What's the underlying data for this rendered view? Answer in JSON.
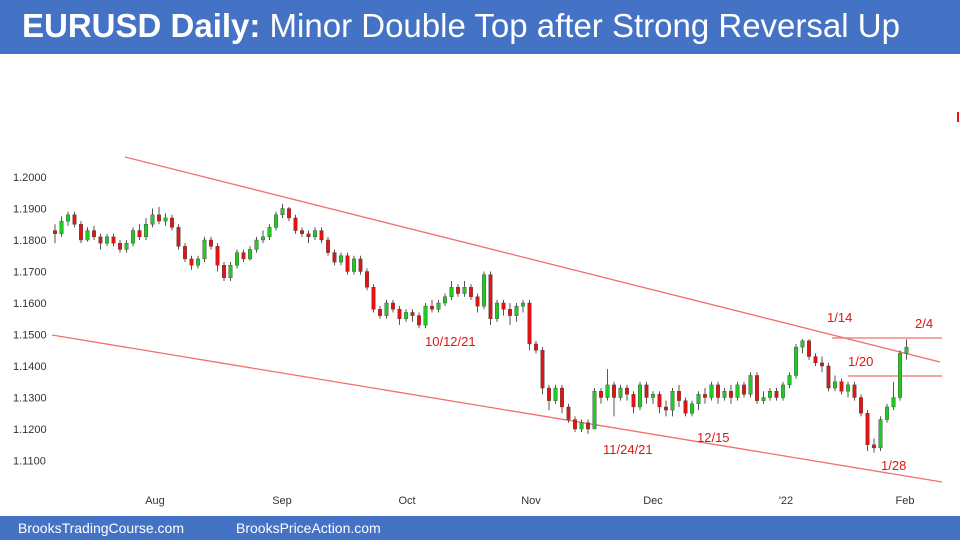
{
  "header": {
    "title_bold": "EURUSD Daily:",
    "title_rest": " Minor Double Top after Strong Reversal Up",
    "background": "#4472c4"
  },
  "footer": {
    "link_left": "BrooksTradingCourse.com",
    "link_right": "BrooksPriceAction.com"
  },
  "chart_data": {
    "type": "candlestick",
    "title": "EURUSD Daily: Minor Double Top after Strong Reversal Up",
    "ylim": [
      1.104,
      1.2085
    ],
    "y_ticks": [
      "1.2000",
      "1.1900",
      "1.1800",
      "1.1700",
      "1.1600",
      "1.1500",
      "1.1400",
      "1.1300",
      "1.1200",
      "1.1100"
    ],
    "x_months": [
      "Aug",
      "Sep",
      "Oct",
      "Nov",
      "Dec",
      "'22",
      "Feb"
    ],
    "grid": false,
    "colors": {
      "up": "#22c922",
      "down": "#e01414",
      "wick": "#555555",
      "trendline": "#f07070"
    },
    "annotations": [
      "10/12/21",
      "11/24/21",
      "12/15",
      "1/14",
      "1/20",
      "1/28",
      "2/4"
    ],
    "candles": [
      [
        1.183,
        1.182,
        1.185,
        1.179
      ],
      [
        1.182,
        1.186,
        1.1875,
        1.181
      ],
      [
        1.186,
        1.188,
        1.189,
        1.1845
      ],
      [
        1.188,
        1.185,
        1.189,
        1.184
      ],
      [
        1.185,
        1.18,
        1.186,
        1.179
      ],
      [
        1.18,
        1.183,
        1.184,
        1.1795
      ],
      [
        1.183,
        1.181,
        1.1845,
        1.18
      ],
      [
        1.181,
        1.179,
        1.182,
        1.177
      ],
      [
        1.179,
        1.181,
        1.182,
        1.178
      ],
      [
        1.181,
        1.179,
        1.182,
        1.178
      ],
      [
        1.179,
        1.177,
        1.18,
        1.176
      ],
      [
        1.177,
        1.179,
        1.18,
        1.176
      ],
      [
        1.179,
        1.183,
        1.184,
        1.178
      ],
      [
        1.183,
        1.181,
        1.185,
        1.18
      ],
      [
        1.181,
        1.185,
        1.187,
        1.18
      ],
      [
        1.185,
        1.188,
        1.19,
        1.184
      ],
      [
        1.188,
        1.186,
        1.1905,
        1.185
      ],
      [
        1.186,
        1.187,
        1.1885,
        1.1845
      ],
      [
        1.187,
        1.184,
        1.188,
        1.183
      ],
      [
        1.184,
        1.178,
        1.185,
        1.177
      ],
      [
        1.178,
        1.174,
        1.179,
        1.173
      ],
      [
        1.174,
        1.172,
        1.175,
        1.1705
      ],
      [
        1.172,
        1.174,
        1.175,
        1.171
      ],
      [
        1.174,
        1.18,
        1.181,
        1.173
      ],
      [
        1.18,
        1.178,
        1.181,
        1.177
      ],
      [
        1.178,
        1.172,
        1.179,
        1.17
      ],
      [
        1.172,
        1.168,
        1.173,
        1.167
      ],
      [
        1.168,
        1.172,
        1.173,
        1.167
      ],
      [
        1.172,
        1.176,
        1.177,
        1.171
      ],
      [
        1.176,
        1.174,
        1.177,
        1.173
      ],
      [
        1.174,
        1.177,
        1.178,
        1.1735
      ],
      [
        1.177,
        1.18,
        1.181,
        1.176
      ],
      [
        1.18,
        1.181,
        1.183,
        1.179
      ],
      [
        1.181,
        1.184,
        1.185,
        1.18
      ],
      [
        1.184,
        1.188,
        1.189,
        1.183
      ],
      [
        1.188,
        1.19,
        1.1915,
        1.187
      ],
      [
        1.19,
        1.187,
        1.1905,
        1.186
      ],
      [
        1.187,
        1.183,
        1.188,
        1.182
      ],
      [
        1.183,
        1.182,
        1.184,
        1.181
      ],
      [
        1.182,
        1.181,
        1.183,
        1.179
      ],
      [
        1.181,
        1.183,
        1.184,
        1.18
      ],
      [
        1.183,
        1.18,
        1.184,
        1.179
      ],
      [
        1.18,
        1.176,
        1.181,
        1.175
      ],
      [
        1.176,
        1.173,
        1.177,
        1.172
      ],
      [
        1.173,
        1.175,
        1.176,
        1.172
      ],
      [
        1.175,
        1.17,
        1.176,
        1.169
      ],
      [
        1.17,
        1.174,
        1.175,
        1.169
      ],
      [
        1.174,
        1.17,
        1.175,
        1.169
      ],
      [
        1.17,
        1.165,
        1.171,
        1.164
      ],
      [
        1.165,
        1.158,
        1.166,
        1.157
      ],
      [
        1.158,
        1.156,
        1.159,
        1.155
      ],
      [
        1.156,
        1.16,
        1.161,
        1.155
      ],
      [
        1.16,
        1.158,
        1.161,
        1.157
      ],
      [
        1.158,
        1.155,
        1.159,
        1.153
      ],
      [
        1.155,
        1.157,
        1.158,
        1.154
      ],
      [
        1.157,
        1.156,
        1.158,
        1.154
      ],
      [
        1.156,
        1.153,
        1.157,
        1.152
      ],
      [
        1.153,
        1.159,
        1.16,
        1.152
      ],
      [
        1.159,
        1.158,
        1.161,
        1.157
      ],
      [
        1.158,
        1.16,
        1.161,
        1.157
      ],
      [
        1.16,
        1.162,
        1.163,
        1.159
      ],
      [
        1.162,
        1.165,
        1.167,
        1.161
      ],
      [
        1.165,
        1.163,
        1.166,
        1.162
      ],
      [
        1.163,
        1.165,
        1.167,
        1.162
      ],
      [
        1.165,
        1.162,
        1.166,
        1.161
      ],
      [
        1.162,
        1.159,
        1.163,
        1.157
      ],
      [
        1.159,
        1.169,
        1.17,
        1.158
      ],
      [
        1.169,
        1.155,
        1.17,
        1.153
      ],
      [
        1.155,
        1.16,
        1.161,
        1.154
      ],
      [
        1.16,
        1.158,
        1.161,
        1.156
      ],
      [
        1.158,
        1.156,
        1.16,
        1.153
      ],
      [
        1.156,
        1.159,
        1.16,
        1.154
      ],
      [
        1.159,
        1.16,
        1.161,
        1.157
      ],
      [
        1.16,
        1.147,
        1.161,
        1.145
      ],
      [
        1.147,
        1.145,
        1.148,
        1.144
      ],
      [
        1.145,
        1.133,
        1.146,
        1.131
      ],
      [
        1.133,
        1.129,
        1.134,
        1.126
      ],
      [
        1.129,
        1.133,
        1.134,
        1.128
      ],
      [
        1.133,
        1.127,
        1.134,
        1.125
      ],
      [
        1.127,
        1.123,
        1.128,
        1.122
      ],
      [
        1.123,
        1.12,
        1.124,
        1.119
      ],
      [
        1.12,
        1.122,
        1.123,
        1.119
      ],
      [
        1.122,
        1.12,
        1.123,
        1.1185
      ],
      [
        1.12,
        1.132,
        1.133,
        1.12
      ],
      [
        1.132,
        1.13,
        1.133,
        1.128
      ],
      [
        1.13,
        1.134,
        1.139,
        1.129
      ],
      [
        1.134,
        1.13,
        1.135,
        1.124
      ],
      [
        1.13,
        1.133,
        1.134,
        1.129
      ],
      [
        1.133,
        1.131,
        1.134,
        1.129
      ],
      [
        1.131,
        1.127,
        1.132,
        1.125
      ],
      [
        1.127,
        1.134,
        1.135,
        1.126
      ],
      [
        1.134,
        1.13,
        1.135,
        1.128
      ],
      [
        1.13,
        1.131,
        1.132,
        1.128
      ],
      [
        1.131,
        1.127,
        1.132,
        1.125
      ],
      [
        1.127,
        1.126,
        1.129,
        1.124
      ],
      [
        1.126,
        1.132,
        1.133,
        1.124
      ],
      [
        1.132,
        1.129,
        1.134,
        1.127
      ],
      [
        1.129,
        1.125,
        1.13,
        1.124
      ],
      [
        1.125,
        1.128,
        1.129,
        1.124
      ],
      [
        1.128,
        1.131,
        1.132,
        1.126
      ],
      [
        1.131,
        1.13,
        1.133,
        1.128
      ],
      [
        1.13,
        1.134,
        1.135,
        1.129
      ],
      [
        1.134,
        1.13,
        1.135,
        1.128
      ],
      [
        1.13,
        1.132,
        1.133,
        1.129
      ],
      [
        1.132,
        1.13,
        1.134,
        1.128
      ],
      [
        1.13,
        1.134,
        1.135,
        1.129
      ],
      [
        1.134,
        1.131,
        1.135,
        1.13
      ],
      [
        1.131,
        1.137,
        1.138,
        1.13
      ],
      [
        1.137,
        1.129,
        1.138,
        1.128
      ],
      [
        1.129,
        1.13,
        1.132,
        1.128
      ],
      [
        1.13,
        1.132,
        1.133,
        1.129
      ],
      [
        1.132,
        1.13,
        1.133,
        1.129
      ],
      [
        1.13,
        1.134,
        1.135,
        1.129
      ],
      [
        1.134,
        1.137,
        1.138,
        1.133
      ],
      [
        1.137,
        1.146,
        1.147,
        1.136
      ],
      [
        1.146,
        1.148,
        1.1485,
        1.144
      ],
      [
        1.148,
        1.143,
        1.1485,
        1.142
      ],
      [
        1.143,
        1.141,
        1.144,
        1.14
      ],
      [
        1.141,
        1.14,
        1.143,
        1.138
      ],
      [
        1.14,
        1.133,
        1.141,
        1.132
      ],
      [
        1.133,
        1.135,
        1.137,
        1.132
      ],
      [
        1.135,
        1.132,
        1.136,
        1.131
      ],
      [
        1.132,
        1.134,
        1.135,
        1.13
      ],
      [
        1.134,
        1.13,
        1.135,
        1.129
      ],
      [
        1.13,
        1.125,
        1.131,
        1.124
      ],
      [
        1.125,
        1.115,
        1.126,
        1.113
      ],
      [
        1.115,
        1.114,
        1.117,
        1.1125
      ],
      [
        1.114,
        1.123,
        1.124,
        1.113
      ],
      [
        1.123,
        1.127,
        1.128,
        1.122
      ],
      [
        1.127,
        1.13,
        1.135,
        1.126
      ],
      [
        1.13,
        1.144,
        1.145,
        1.129
      ],
      [
        1.144,
        1.146,
        1.1485,
        1.142
      ]
    ]
  }
}
